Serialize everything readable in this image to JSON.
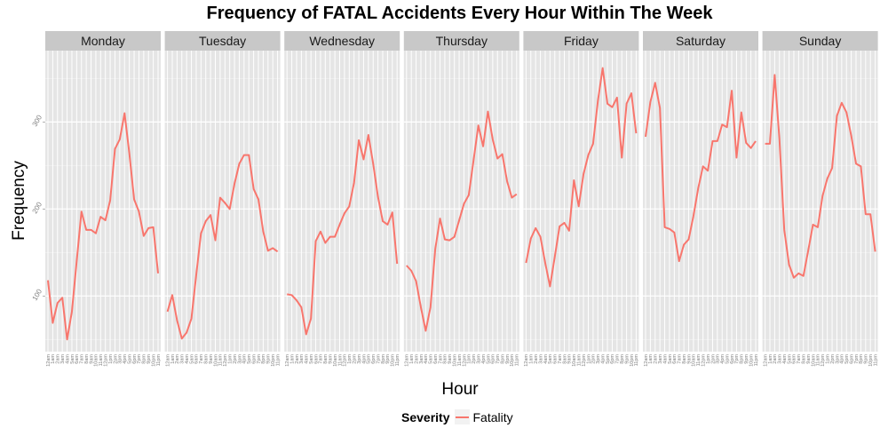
{
  "chart_data": {
    "type": "line",
    "title": "Frequency of FATAL Accidents Every Hour Within The Week",
    "xlabel": "Hour",
    "ylabel": "Frequency",
    "ylim": [
      36,
      382
    ],
    "y_ticks": [
      100,
      200,
      300
    ],
    "x_tick_labels": [
      "12am",
      "1am",
      "2am",
      "3am",
      "4am",
      "5am",
      "6am",
      "7am",
      "8am",
      "9am",
      "10am",
      "11am",
      "12pm",
      "1pm",
      "2pm",
      "3pm",
      "4pm",
      "5pm",
      "6pm",
      "7pm",
      "8pm",
      "9pm",
      "10pm",
      "11pm"
    ],
    "facets": [
      "Monday",
      "Tuesday",
      "Wednesday",
      "Thursday",
      "Friday",
      "Saturday",
      "Sunday"
    ],
    "legend": {
      "title": "Severity",
      "position": "bottom"
    },
    "grid": true,
    "series": [
      {
        "name": "Fatality",
        "color": "#F8766D",
        "values_by_facet": {
          "Monday": [
            118,
            69,
            92,
            98,
            50,
            82,
            140,
            197,
            176,
            176,
            172,
            191,
            187,
            210,
            269,
            280,
            310,
            264,
            211,
            197,
            169,
            178,
            179,
            126
          ],
          "Tuesday": [
            82,
            101,
            72,
            51,
            58,
            74,
            124,
            172,
            186,
            193,
            164,
            213,
            207,
            200,
            229,
            252,
            262,
            262,
            223,
            211,
            174,
            152,
            155,
            151
          ],
          "Wednesday": [
            102,
            101,
            95,
            87,
            56,
            74,
            163,
            174,
            161,
            168,
            168,
            182,
            195,
            203,
            230,
            279,
            257,
            285,
            252,
            214,
            186,
            182,
            196,
            137
          ],
          "Thursday": [
            135,
            129,
            117,
            87,
            60,
            87,
            154,
            189,
            165,
            164,
            168,
            187,
            206,
            216,
            256,
            296,
            272,
            312,
            280,
            258,
            263,
            232,
            213,
            217
          ],
          "Friday": [
            138,
            166,
            178,
            168,
            138,
            111,
            145,
            180,
            184,
            175,
            233,
            203,
            240,
            262,
            275,
            324,
            362,
            321,
            317,
            328,
            259,
            321,
            333,
            287
          ],
          "Saturday": [
            283,
            323,
            345,
            316,
            179,
            177,
            173,
            140,
            159,
            165,
            192,
            224,
            249,
            244,
            278,
            278,
            297,
            294,
            336,
            259,
            311,
            276,
            270,
            278
          ],
          "Sunday": [
            275,
            275,
            354,
            280,
            176,
            136,
            121,
            126,
            123,
            152,
            182,
            179,
            215,
            235,
            247,
            307,
            322,
            311,
            284,
            252,
            249,
            194,
            194,
            151
          ]
        }
      }
    ]
  }
}
